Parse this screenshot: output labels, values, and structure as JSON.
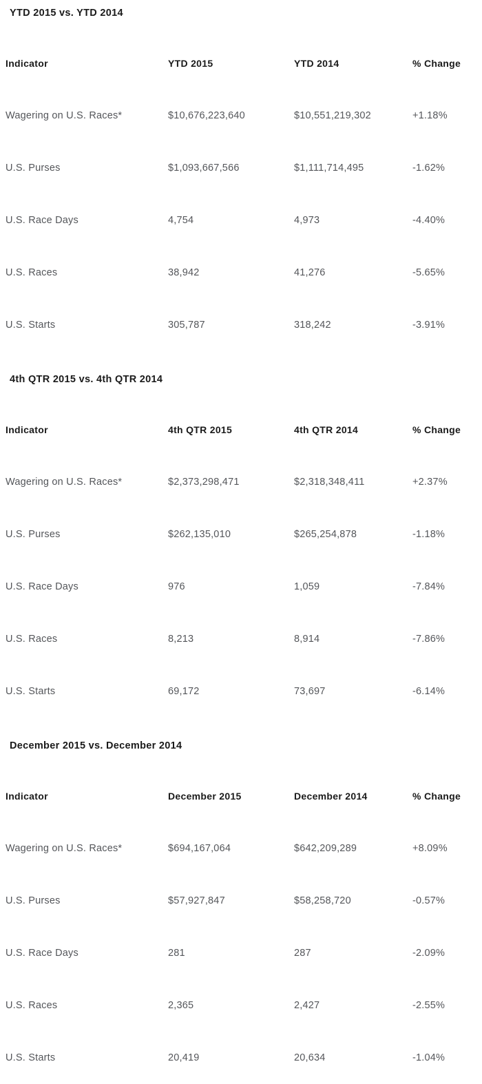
{
  "page": {
    "background_color": "#ffffff",
    "heading_color": "#1a1a1a",
    "body_text_color": "#54565a"
  },
  "sections": [
    {
      "title": "YTD 2015 vs. YTD 2014",
      "headers": [
        "Indicator",
        "YTD 2015",
        "YTD 2014",
        "% Change"
      ],
      "rows": [
        [
          "Wagering on U.S. Races*",
          "$10,676,223,640",
          "$10,551,219,302",
          "+1.18%"
        ],
        [
          "U.S. Purses",
          "$1,093,667,566",
          "$1,111,714,495",
          "-1.62%"
        ],
        [
          "U.S. Race Days",
          "4,754",
          "4,973",
          "-4.40%"
        ],
        [
          "U.S. Races",
          "38,942",
          "41,276",
          "-5.65%"
        ],
        [
          "U.S. Starts",
          "305,787",
          "318,242",
          "-3.91%"
        ]
      ]
    },
    {
      "title": "4th QTR 2015 vs. 4th QTR 2014",
      "headers": [
        "Indicator",
        "4th QTR 2015",
        "4th QTR 2014",
        "% Change"
      ],
      "rows": [
        [
          "Wagering on U.S. Races*",
          "$2,373,298,471",
          "$2,318,348,411",
          "+2.37%"
        ],
        [
          "U.S. Purses",
          "$262,135,010",
          "$265,254,878",
          "-1.18%"
        ],
        [
          "U.S. Race Days",
          "976",
          "1,059",
          "-7.84%"
        ],
        [
          "U.S. Races",
          "8,213",
          "8,914",
          "-7.86%"
        ],
        [
          "U.S. Starts",
          "69,172",
          "73,697",
          "-6.14%"
        ]
      ]
    },
    {
      "title": "December 2015 vs. December 2014",
      "headers": [
        "Indicator",
        "December 2015",
        "December 2014",
        "% Change"
      ],
      "rows": [
        [
          "Wagering on U.S. Races*",
          "$694,167,064",
          "$642,209,289",
          "+8.09%"
        ],
        [
          "U.S. Purses",
          "$57,927,847",
          "$58,258,720",
          "-0.57%"
        ],
        [
          "U.S. Race Days",
          "281",
          "287",
          "-2.09%"
        ],
        [
          "U.S. Races",
          "2,365",
          "2,427",
          "-2.55%"
        ],
        [
          "U.S. Starts",
          "20,419",
          "20,634",
          "-1.04%"
        ]
      ]
    }
  ]
}
